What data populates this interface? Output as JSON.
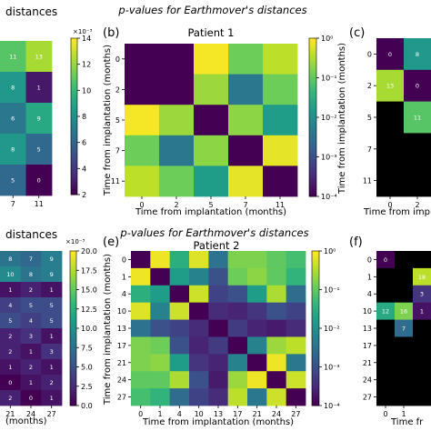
{
  "colors": {
    "viridis": [
      "#440154",
      "#482878",
      "#3e4989",
      "#31688e",
      "#26828e",
      "#1f9e89",
      "#35b779",
      "#6ece58",
      "#b5de2b",
      "#fde725"
    ],
    "black": "#000000",
    "cell_text": "#ffffff"
  },
  "chart_data": [
    {
      "id": "a",
      "type": "heatmap",
      "title": "distances",
      "x_ticks": [
        "7",
        "11"
      ],
      "y_ticks": [],
      "xlabel": "",
      "ylabel": "",
      "cells": [
        [
          11,
          13
        ],
        [
          8,
          1
        ],
        [
          6,
          9
        ],
        [
          8,
          5
        ],
        [
          5,
          0
        ]
      ],
      "colorbar": {
        "ticks": [
          "14",
          "12",
          "10",
          "8",
          "6",
          "4",
          "2"
        ],
        "exponent": "×10⁻³",
        "range": [
          0,
          15
        ]
      }
    },
    {
      "id": "b",
      "type": "heatmap",
      "panel_label": "(b)",
      "title_line1": "p-values for Earthmover's distances",
      "title_line2": "Patient 1",
      "x_ticks": [
        "0",
        "2",
        "5",
        "7",
        "11"
      ],
      "y_ticks": [
        "0",
        "2",
        "5",
        "7",
        "11"
      ],
      "xlabel": "Time from implantation (months)",
      "ylabel": "Time from implantation (months)",
      "log_values": [
        [
          -4.0,
          -4.0,
          -0.05,
          -0.9,
          -0.4
        ],
        [
          -4.0,
          -4.0,
          -0.6,
          -2.4,
          -0.9
        ],
        [
          -0.05,
          -0.6,
          -4.0,
          -0.7,
          -1.8
        ],
        [
          -0.9,
          -2.4,
          -0.7,
          -4.0,
          -0.15
        ],
        [
          -0.4,
          -0.9,
          -1.8,
          -0.15,
          -4.0
        ]
      ],
      "colorbar": {
        "ticks": [
          "10⁰",
          "10⁻¹",
          "10⁻²",
          "10⁻³",
          "10⁻⁴"
        ],
        "scale": "log",
        "range": [
          -4,
          0
        ]
      }
    },
    {
      "id": "c",
      "type": "heatmap",
      "panel_label": "(c)",
      "x_ticks": [
        "0",
        "2"
      ],
      "y_ticks": [
        "0",
        "2",
        "5",
        "7",
        "11"
      ],
      "xlabel": "Time from implantation",
      "ylabel": "Time from implantation (months)",
      "cells": [
        [
          0,
          8
        ],
        [
          13,
          0
        ],
        [
          null,
          11
        ],
        [
          null,
          null
        ],
        [
          null,
          null
        ]
      ],
      "value_range": [
        0,
        15
      ]
    },
    {
      "id": "d",
      "type": "heatmap",
      "title": "distances",
      "x_ticks": [
        "21",
        "24",
        "27"
      ],
      "y_ticks": [],
      "xlabel": "(months)",
      "ylabel": "",
      "cells": [
        [
          8,
          7,
          9
        ],
        [
          10,
          8,
          9
        ],
        [
          1,
          2,
          1
        ],
        [
          4,
          5,
          5
        ],
        [
          5,
          4,
          5
        ],
        [
          2,
          3,
          1
        ],
        [
          2,
          1,
          3
        ],
        [
          1,
          2,
          1
        ],
        [
          0,
          1,
          2
        ],
        [
          2,
          0,
          1
        ]
      ],
      "colorbar": {
        "ticks": [
          "20.0",
          "17.5",
          "15.0",
          "12.5",
          "10.0",
          "7.5",
          "5.0",
          "2.5",
          "0.0"
        ],
        "exponent": "×10⁻³",
        "range": [
          0,
          21
        ]
      }
    },
    {
      "id": "e",
      "type": "heatmap",
      "panel_label": "(e)",
      "title_line1": "p-values for Earthmover's distances",
      "title_line2": "Patient 2",
      "x_ticks": [
        "0",
        "1",
        "4",
        "10",
        "13",
        "17",
        "21",
        "24",
        "27"
      ],
      "y_ticks": [
        "0",
        "1",
        "4",
        "10",
        "13",
        "17",
        "21",
        "24",
        "27"
      ],
      "xlabel": "Time from implantation (months)",
      "ylabel": "Time from implantation (months)",
      "log_values": [
        [
          -4.0,
          -0.1,
          -1.5,
          -0.2,
          -2.5,
          -0.8,
          -0.8,
          -1.0,
          -1.2
        ],
        [
          -0.1,
          -4.0,
          -1.8,
          -2.2,
          -3.0,
          -0.9,
          -0.7,
          -1.0,
          -1.4
        ],
        [
          -1.5,
          -1.8,
          -4.0,
          -0.3,
          -3.2,
          -3.0,
          -1.8,
          -0.5,
          -2.6
        ],
        [
          -0.2,
          -2.2,
          -0.3,
          -4.0,
          -3.5,
          -3.6,
          -3.4,
          -3.0,
          -3.2
        ],
        [
          -2.5,
          -3.0,
          -3.2,
          -3.5,
          -4.0,
          -3.3,
          -3.6,
          -3.7,
          -3.5
        ],
        [
          -0.8,
          -0.9,
          -3.0,
          -3.6,
          -3.3,
          -4.0,
          -2.2,
          -0.6,
          -0.4
        ],
        [
          -0.8,
          -0.7,
          -1.8,
          -3.4,
          -3.6,
          -2.2,
          -4.0,
          -0.1,
          -2.4
        ],
        [
          -1.0,
          -1.0,
          -0.5,
          -3.0,
          -3.7,
          -0.6,
          -0.1,
          -4.0,
          -0.3
        ],
        [
          -1.2,
          -1.4,
          -2.6,
          -3.2,
          -3.5,
          -0.4,
          -2.4,
          -0.3,
          -4.0
        ]
      ],
      "colorbar": {
        "ticks": [
          "10⁰",
          "10⁻¹",
          "10⁻²",
          "10⁻³",
          "10⁻⁴"
        ],
        "scale": "log",
        "range": [
          -4,
          0
        ]
      }
    },
    {
      "id": "f",
      "type": "heatmap",
      "panel_label": "(f)",
      "x_ticks": [
        "0",
        "1"
      ],
      "y_ticks": [
        "0",
        "1",
        "4",
        "10",
        "13",
        "17",
        "21",
        "24",
        "27"
      ],
      "xlabel": "Time fr",
      "ylabel": "",
      "cells": [
        [
          0,
          null,
          null
        ],
        [
          null,
          null,
          18
        ],
        [
          null,
          null,
          3
        ],
        [
          12,
          16,
          1
        ],
        [
          null,
          7,
          null
        ],
        [
          null,
          null,
          null
        ],
        [
          null,
          null,
          null
        ],
        [
          null,
          null,
          null
        ],
        [
          null,
          null,
          null
        ]
      ],
      "value_range": [
        0,
        20
      ]
    }
  ]
}
